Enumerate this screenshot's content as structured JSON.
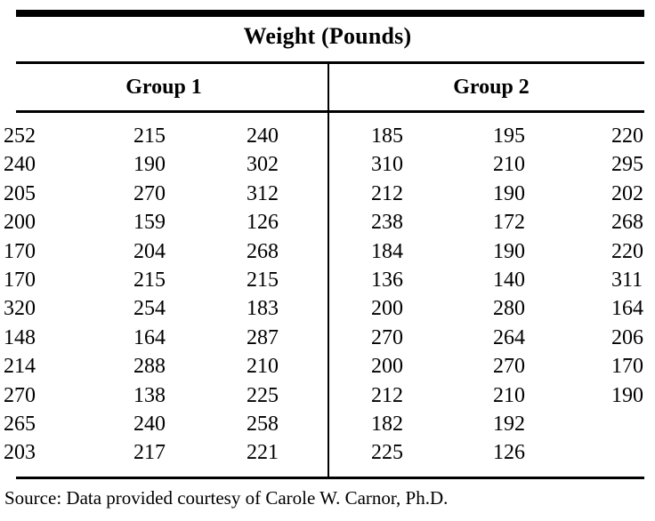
{
  "title": "Weight (Pounds)",
  "groups": [
    {
      "label": "Group 1"
    },
    {
      "label": "Group 2"
    }
  ],
  "table": {
    "columns_per_group": 3,
    "rows": [
      [
        "252",
        "215",
        "240",
        "185",
        "195",
        "220"
      ],
      [
        "240",
        "190",
        "302",
        "310",
        "210",
        "295"
      ],
      [
        "205",
        "270",
        "312",
        "212",
        "190",
        "202"
      ],
      [
        "200",
        "159",
        "126",
        "238",
        "172",
        "268"
      ],
      [
        "170",
        "204",
        "268",
        "184",
        "190",
        "220"
      ],
      [
        "170",
        "215",
        "215",
        "136",
        "140",
        "311"
      ],
      [
        "320",
        "254",
        "183",
        "200",
        "280",
        "164"
      ],
      [
        "148",
        "164",
        "287",
        "270",
        "264",
        "206"
      ],
      [
        "214",
        "288",
        "210",
        "200",
        "270",
        "170"
      ],
      [
        "270",
        "138",
        "225",
        "212",
        "210",
        "190"
      ],
      [
        "265",
        "240",
        "258",
        "182",
        "192",
        ""
      ],
      [
        "203",
        "217",
        "221",
        "225",
        "126",
        ""
      ]
    ]
  },
  "source": "Source: Data provided courtesy of Carole W. Carnor, Ph.D.",
  "colors": {
    "ink": "#000000",
    "background": "#ffffff"
  }
}
